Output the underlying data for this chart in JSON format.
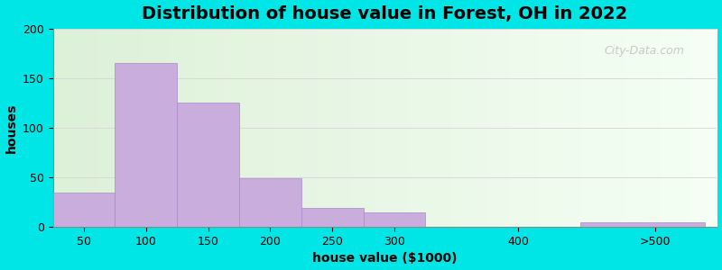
{
  "title": "Distribution of house value in Forest, OH in 2022",
  "xlabel": "house value ($1000)",
  "ylabel": "houses",
  "bar_left_edges": [
    25,
    75,
    125,
    175,
    225,
    275,
    350,
    450
  ],
  "bar_widths": [
    50,
    50,
    50,
    50,
    50,
    50,
    100,
    100
  ],
  "bar_heights": [
    35,
    165,
    125,
    49,
    19,
    15,
    0,
    5
  ],
  "xtick_positions": [
    50,
    100,
    150,
    200,
    250,
    300,
    400
  ],
  "xtick_labels": [
    "50",
    "100",
    "150",
    "200",
    "250",
    "300",
    "400"
  ],
  "xlim": [
    25,
    560
  ],
  "bar_color": "#c9aedd",
  "bar_edge_color": "#a888cc",
  "ylim": [
    0,
    200
  ],
  "yticks": [
    0,
    50,
    100,
    150,
    200
  ],
  "bg_outer": "#00e5e5",
  "bg_inner_left": "#ddf0d8",
  "bg_inner_right": "#f5fff5",
  "title_fontsize": 14,
  "axis_label_fontsize": 10,
  "tick_fontsize": 9,
  "watermark_text": "City-Data.com",
  "watermark_color": "#b8b8b8",
  "gt500_label": ">500",
  "gt500_x": 510
}
